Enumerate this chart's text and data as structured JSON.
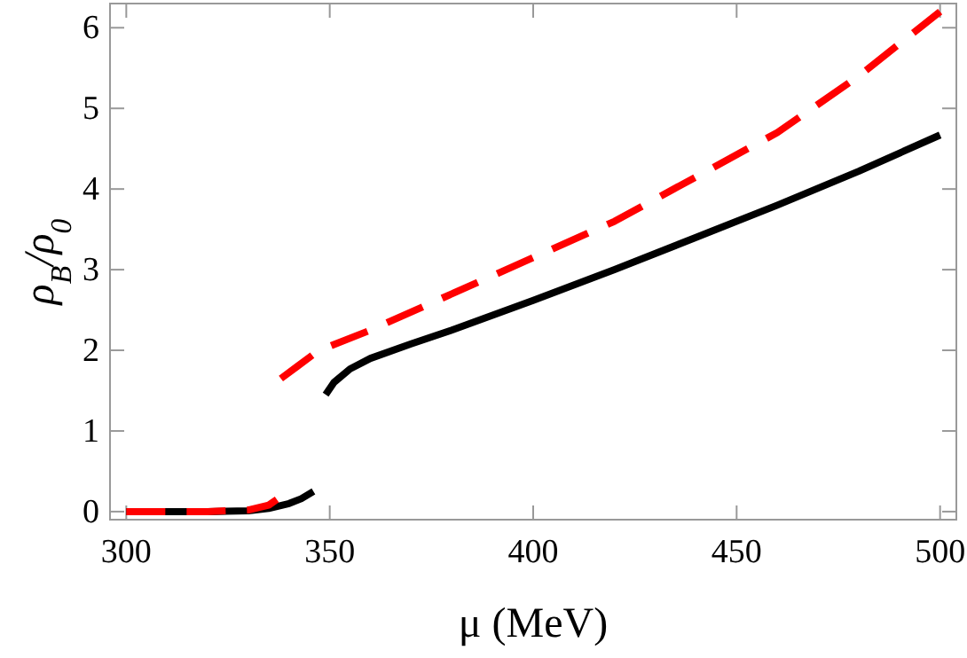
{
  "chart_data": {
    "type": "line",
    "xlabel": "μ (MeV)",
    "ylabel": "ρ$_{B}$/ρ$_{0}$",
    "xlim": [
      296,
      504
    ],
    "ylim": [
      -0.1,
      6.3
    ],
    "xticks": [
      300,
      350,
      400,
      450,
      500
    ],
    "yticks": [
      0,
      1,
      2,
      3,
      4,
      5,
      6
    ],
    "series": [
      {
        "color": "#000000",
        "line_style": "solid",
        "x": [
          300,
          320,
          330,
          335,
          340,
          343,
          346,
          347,
          349,
          351,
          355,
          360,
          370,
          380,
          400,
          420,
          440,
          460,
          480,
          500
        ],
        "values": [
          0,
          0,
          0.01,
          0.04,
          0.1,
          0.16,
          0.25,
          null,
          1.45,
          1.6,
          1.77,
          1.9,
          2.08,
          2.25,
          2.62,
          3.0,
          3.4,
          3.8,
          4.22,
          4.67
        ]
      },
      {
        "color": "#ff0000",
        "line_style": "dashed",
        "x": [
          300,
          320,
          330,
          335,
          337,
          337.5,
          338,
          342,
          346,
          350,
          360,
          380,
          400,
          420,
          440,
          460,
          480,
          500
        ],
        "values": [
          0,
          0,
          0.02,
          0.08,
          0.15,
          null,
          1.65,
          1.8,
          1.95,
          2.05,
          2.25,
          2.7,
          3.15,
          3.6,
          4.15,
          4.7,
          5.4,
          6.2
        ]
      }
    ]
  }
}
